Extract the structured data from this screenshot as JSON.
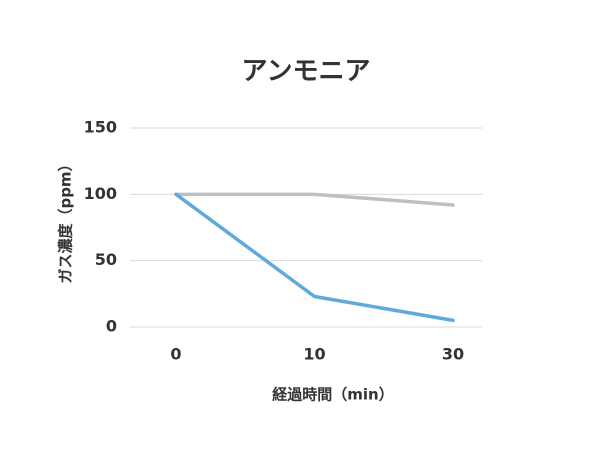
{
  "chart_data": {
    "type": "line",
    "title": "アンモニア",
    "x_label": "経過時間（min）",
    "y_label": "ガス濃度（ppm）",
    "categories": [
      "0",
      "10",
      "30"
    ],
    "series": [
      {
        "color": "#bfbfbf",
        "values": [
          100,
          100,
          92
        ]
      },
      {
        "color": "#5fa9dc",
        "values": [
          100,
          23,
          5
        ]
      }
    ],
    "ylim": [
      0,
      150
    ],
    "yticks": [
      0,
      50,
      100,
      150
    ],
    "grid": true
  }
}
